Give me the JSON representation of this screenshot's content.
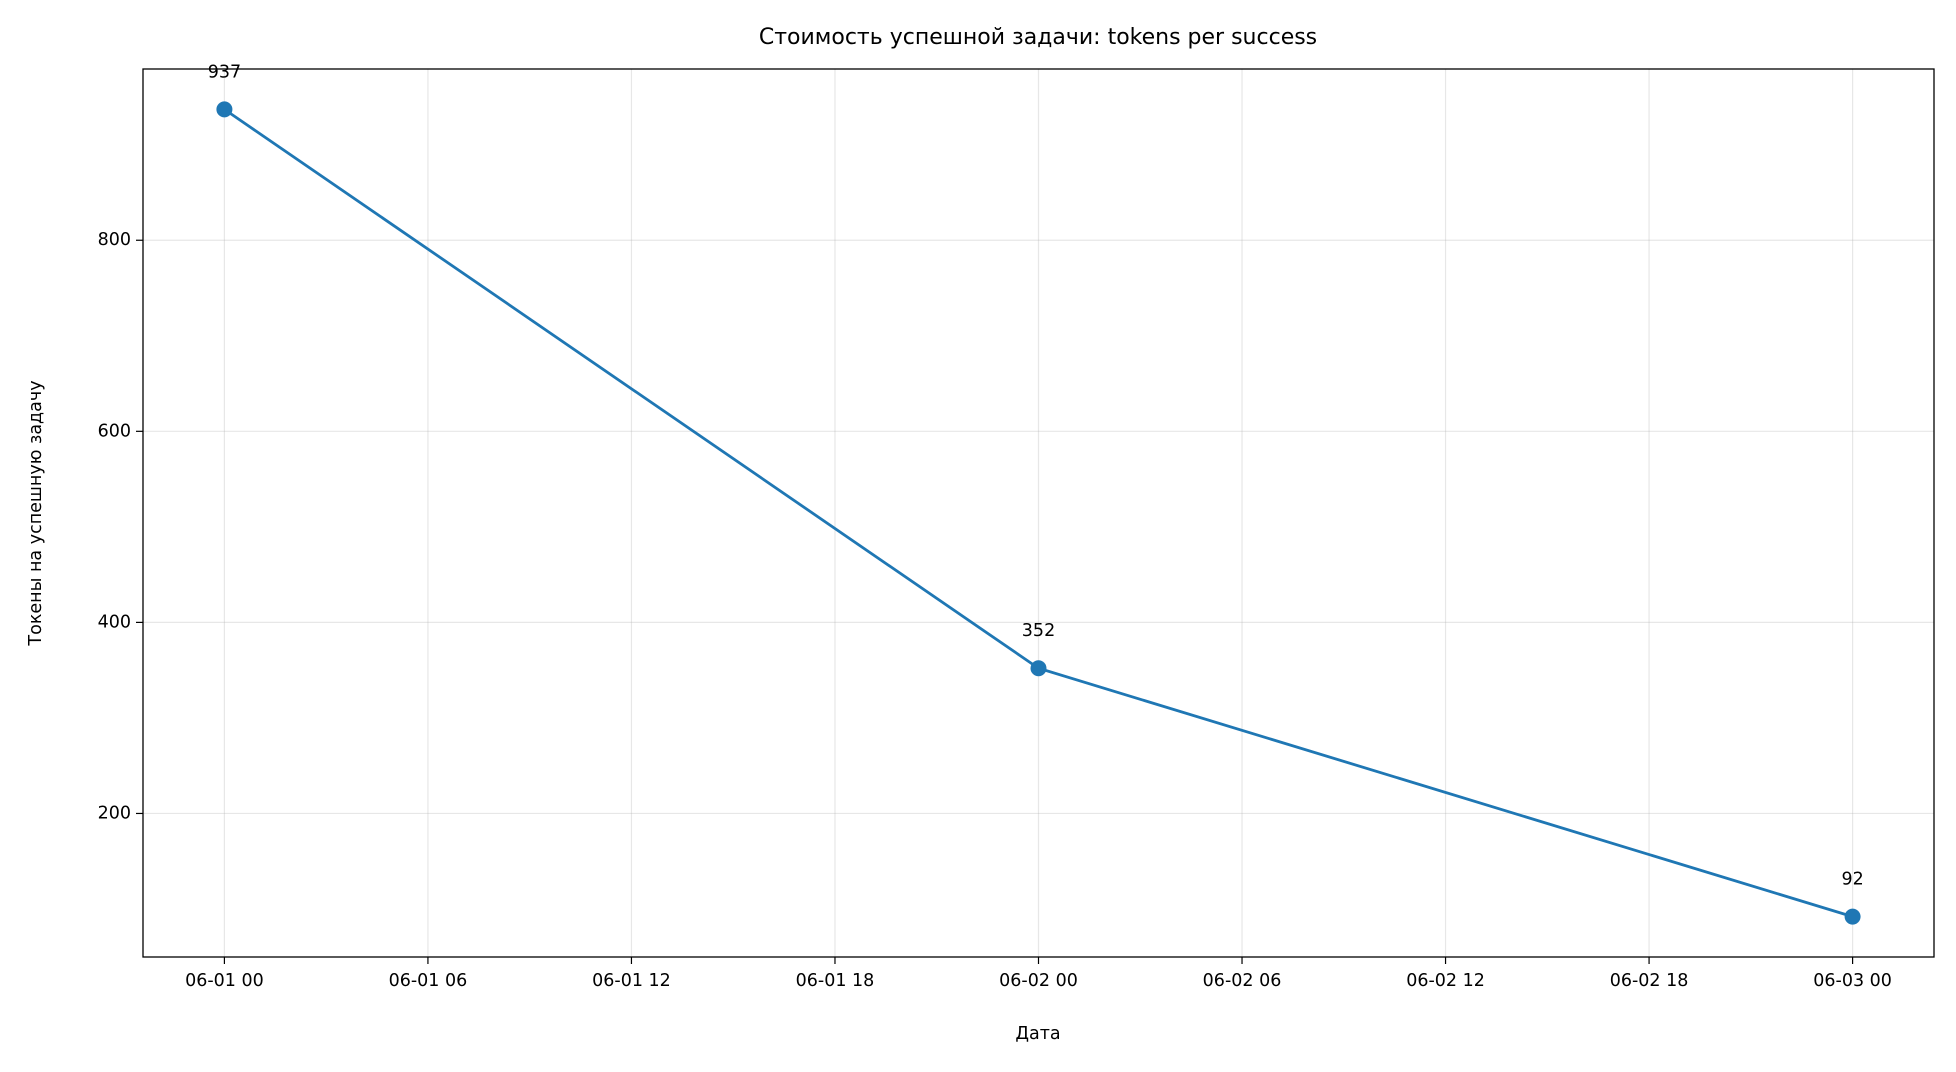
{
  "chart_data": {
    "type": "line",
    "title": "Стоимость успешной задачи: tokens per success",
    "xlabel": "Дата",
    "ylabel": "Токены на успешную задачу",
    "x": [
      0,
      24,
      48
    ],
    "series": [
      {
        "name": "tokens per success",
        "color": "#1f77b4",
        "values": [
          937,
          352,
          92
        ]
      }
    ],
    "xlim": [
      -2.4,
      50.4
    ],
    "xticks": [
      {
        "value": 0,
        "label": "06-01 00"
      },
      {
        "value": 6,
        "label": "06-01 06"
      },
      {
        "value": 12,
        "label": "06-01 12"
      },
      {
        "value": 18,
        "label": "06-01 18"
      },
      {
        "value": 24,
        "label": "06-02 00"
      },
      {
        "value": 30,
        "label": "06-02 06"
      },
      {
        "value": 36,
        "label": "06-02 12"
      },
      {
        "value": 42,
        "label": "06-02 18"
      },
      {
        "value": 48,
        "label": "06-03 00"
      }
    ],
    "ylim": [
      49.75,
      979.25
    ],
    "yticks": [
      200,
      400,
      600,
      800
    ],
    "grid": true,
    "data_labels": true
  }
}
